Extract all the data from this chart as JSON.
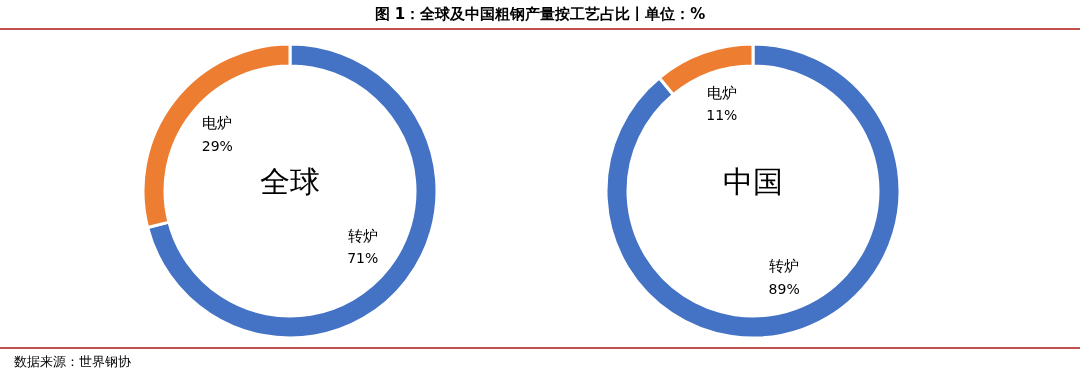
{
  "chart_data": [
    {
      "type": "donut",
      "title": "全球",
      "categories": [
        "转炉",
        "电炉"
      ],
      "values": [
        71,
        29
      ],
      "colors": [
        "#4472c4",
        "#ed7d31"
      ],
      "value_labels": [
        "71%",
        "29%"
      ],
      "annotations": [
        "图 1：全球及中国粗钢产量按工艺占比丨单位：%",
        "数据来源：世界钢协"
      ]
    },
    {
      "type": "donut",
      "title": "中国",
      "categories": [
        "转炉",
        "电炉"
      ],
      "values": [
        89,
        11
      ],
      "colors": [
        "#4472c4",
        "#ed7d31"
      ],
      "value_labels": [
        "89%",
        "11%"
      ]
    }
  ]
}
